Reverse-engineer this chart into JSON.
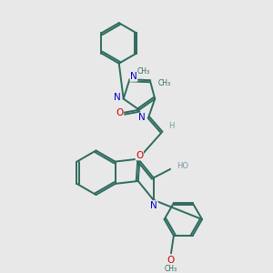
{
  "bg": "#e8e8e8",
  "teal": "#2d6b5e",
  "blue": "#0000cc",
  "red": "#cc0000",
  "gray": "#7a9aaa",
  "lw": 1.4,
  "fs_label": 7.5,
  "fs_small": 6.0,
  "xlim": [
    0,
    10
  ],
  "ylim": [
    0,
    10
  ]
}
